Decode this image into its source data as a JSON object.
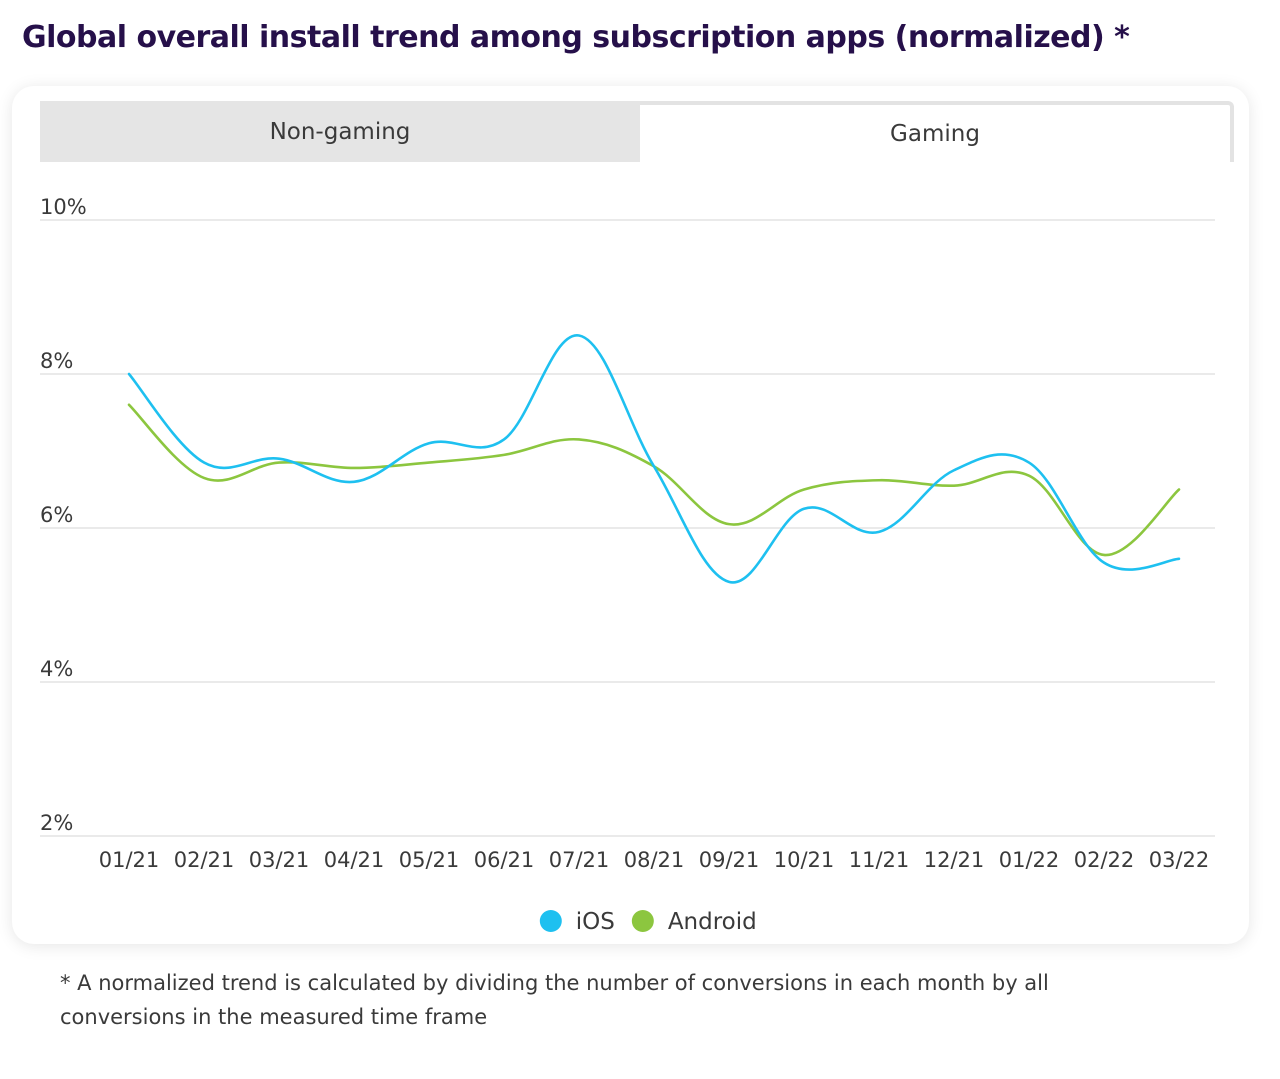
{
  "title": "Global overall install trend among subscription apps (normalized) *",
  "tabs": [
    {
      "label": "Non-gaming",
      "active": false
    },
    {
      "label": "Gaming",
      "active": true
    }
  ],
  "footnote": "* A normalized trend is calculated by dividing the number of conversions in each month by all conversions in the measured time frame",
  "colors": {
    "ios": "#1ec0f0",
    "android": "#8cc63f",
    "title": "#26104a",
    "grid": "#d6d6d6",
    "axis_text": "#3a3a3a"
  },
  "chart_data": {
    "type": "line",
    "title": "",
    "xlabel": "",
    "ylabel": "",
    "categories": [
      "01/21",
      "02/21",
      "03/21",
      "04/21",
      "05/21",
      "06/21",
      "07/21",
      "08/21",
      "09/21",
      "10/21",
      "11/21",
      "12/21",
      "01/22",
      "02/22",
      "03/22"
    ],
    "ylim": [
      2,
      10
    ],
    "yticks": [
      2,
      4,
      6,
      8,
      10
    ],
    "ytick_labels": [
      "2%",
      "4%",
      "6%",
      "8%",
      "10%"
    ],
    "grid": true,
    "legend_position": "bottom-center",
    "series": [
      {
        "name": "iOS",
        "color": "#1ec0f0",
        "values": [
          8.0,
          6.85,
          6.9,
          6.6,
          7.1,
          7.15,
          8.5,
          6.8,
          5.3,
          6.25,
          5.95,
          6.75,
          6.85,
          5.55,
          5.6
        ]
      },
      {
        "name": "Android",
        "color": "#8cc63f",
        "values": [
          7.6,
          6.65,
          6.85,
          6.78,
          6.85,
          6.95,
          7.15,
          6.8,
          6.05,
          6.5,
          6.62,
          6.55,
          6.68,
          5.65,
          6.5
        ]
      }
    ]
  }
}
